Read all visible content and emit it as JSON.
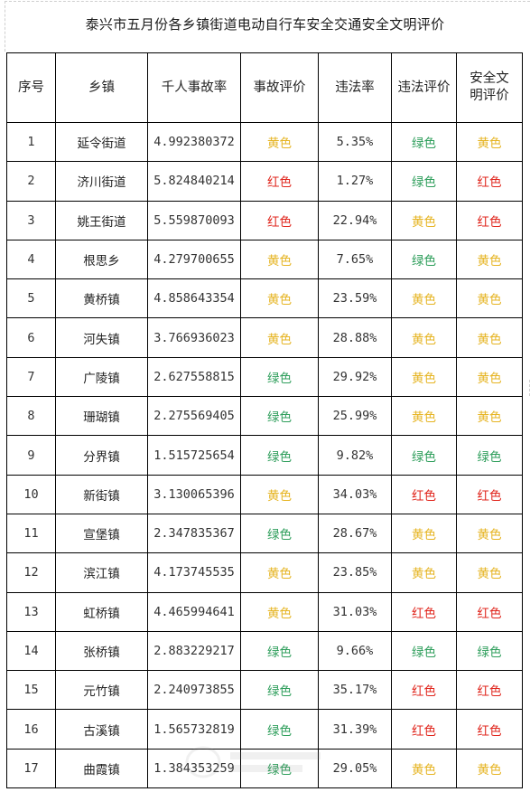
{
  "title": "泰兴市五月份各乡镇街道电动自行车安全交通安全文明评价",
  "colors": {
    "黄色": "#E6B422",
    "红色": "#E0261D",
    "绿色": "#2E9E5B"
  },
  "table": {
    "headers": [
      "序号",
      "乡镇",
      "千人事故率",
      "事故评价",
      "违法率",
      "违法评价",
      "安全文明评价"
    ],
    "rows": [
      {
        "no": "1",
        "town": "延令街道",
        "rate": "4.992380372",
        "acc_eval": "黄色",
        "vio_rate": "5.35%",
        "vio_eval": "绿色",
        "safety_eval": "黄色"
      },
      {
        "no": "2",
        "town": "济川街道",
        "rate": "5.824840214",
        "acc_eval": "红色",
        "vio_rate": "1.27%",
        "vio_eval": "绿色",
        "safety_eval": "红色"
      },
      {
        "no": "3",
        "town": "姚王街道",
        "rate": "5.559870093",
        "acc_eval": "红色",
        "vio_rate": "22.94%",
        "vio_eval": "黄色",
        "safety_eval": "红色"
      },
      {
        "no": "4",
        "town": "根思乡",
        "rate": "4.279700655",
        "acc_eval": "黄色",
        "vio_rate": "7.65%",
        "vio_eval": "绿色",
        "safety_eval": "黄色"
      },
      {
        "no": "5",
        "town": "黄桥镇",
        "rate": "4.858643354",
        "acc_eval": "黄色",
        "vio_rate": "23.59%",
        "vio_eval": "黄色",
        "safety_eval": "黄色"
      },
      {
        "no": "6",
        "town": "河失镇",
        "rate": "3.766936023",
        "acc_eval": "黄色",
        "vio_rate": "28.88%",
        "vio_eval": "黄色",
        "safety_eval": "黄色"
      },
      {
        "no": "7",
        "town": "广陵镇",
        "rate": "2.627558815",
        "acc_eval": "绿色",
        "vio_rate": "29.92%",
        "vio_eval": "黄色",
        "safety_eval": "黄色"
      },
      {
        "no": "8",
        "town": "珊瑚镇",
        "rate": "2.275569405",
        "acc_eval": "绿色",
        "vio_rate": "25.99%",
        "vio_eval": "黄色",
        "safety_eval": "黄色"
      },
      {
        "no": "9",
        "town": "分界镇",
        "rate": "1.515725654",
        "acc_eval": "绿色",
        "vio_rate": "9.82%",
        "vio_eval": "绿色",
        "safety_eval": "绿色"
      },
      {
        "no": "10",
        "town": "新街镇",
        "rate": "3.130065396",
        "acc_eval": "黄色",
        "vio_rate": "34.03%",
        "vio_eval": "红色",
        "safety_eval": "红色"
      },
      {
        "no": "11",
        "town": "宣堡镇",
        "rate": "2.347835367",
        "acc_eval": "绿色",
        "vio_rate": "28.67%",
        "vio_eval": "黄色",
        "safety_eval": "黄色"
      },
      {
        "no": "12",
        "town": "滨江镇",
        "rate": "4.173745535",
        "acc_eval": "黄色",
        "vio_rate": "23.85%",
        "vio_eval": "黄色",
        "safety_eval": "黄色"
      },
      {
        "no": "13",
        "town": "虹桥镇",
        "rate": "4.465994641",
        "acc_eval": "黄色",
        "vio_rate": "31.03%",
        "vio_eval": "红色",
        "safety_eval": "红色"
      },
      {
        "no": "14",
        "town": "张桥镇",
        "rate": "2.883229217",
        "acc_eval": "绿色",
        "vio_rate": "9.66%",
        "vio_eval": "绿色",
        "safety_eval": "绿色"
      },
      {
        "no": "15",
        "town": "元竹镇",
        "rate": "2.240973855",
        "acc_eval": "绿色",
        "vio_rate": "35.17%",
        "vio_eval": "红色",
        "safety_eval": "红色"
      },
      {
        "no": "16",
        "town": "古溪镇",
        "rate": "1.565732819",
        "acc_eval": "绿色",
        "vio_rate": "31.39%",
        "vio_eval": "红色",
        "safety_eval": "红色"
      },
      {
        "no": "17",
        "town": "曲霞镇",
        "rate": "1.384353259",
        "acc_eval": "绿色",
        "vio_rate": "29.05%",
        "vio_eval": "黄色",
        "safety_eval": "黄色"
      }
    ]
  }
}
